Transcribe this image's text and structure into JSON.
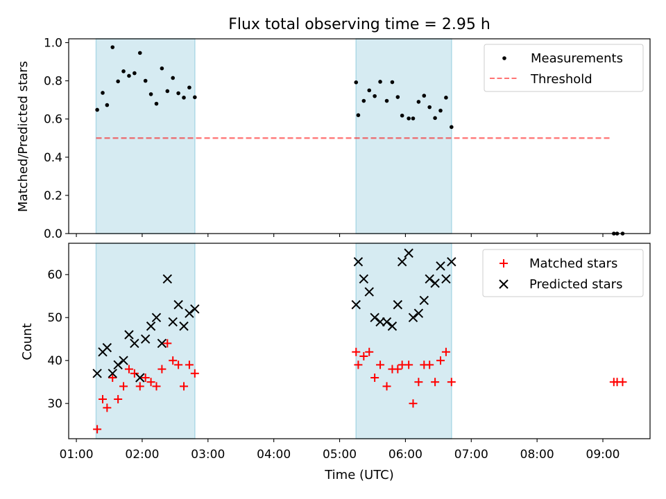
{
  "title": "Flux total observing time = 2.95 h",
  "colors": {
    "shade": "#add8e6",
    "measurement": "#000000",
    "threshold": "#ff0000",
    "matched": "#ff0000",
    "predicted": "#000000"
  },
  "chart_data": [
    {
      "type": "scatter",
      "ylabel": "Matched/Predicted stars",
      "ylim": [
        0,
        1.02
      ],
      "yticks": [
        0.0,
        0.2,
        0.4,
        0.6,
        0.8,
        1.0
      ],
      "ytick_labels": [
        "0.0",
        "0.2",
        "0.4",
        "0.6",
        "0.8",
        "1.0"
      ],
      "legend_position": "top-right",
      "legend": [
        "Measurements",
        "Threshold"
      ],
      "threshold": 0.5,
      "threshold_x_range": [
        "01:18",
        "09:08"
      ],
      "shaded_intervals": [
        [
          "01:18",
          "02:48"
        ],
        [
          "05:15",
          "06:42"
        ]
      ],
      "series": [
        {
          "name": "Measurements",
          "marker": "dot",
          "x": [
            "01:19",
            "01:24",
            "01:28",
            "01:33",
            "01:38",
            "01:43",
            "01:48",
            "01:53",
            "01:58",
            "02:03",
            "02:08",
            "02:13",
            "02:18",
            "02:23",
            "02:28",
            "02:33",
            "02:38",
            "02:43",
            "02:48",
            "05:15",
            "05:17",
            "05:22",
            "05:27",
            "05:32",
            "05:37",
            "05:43",
            "05:48",
            "05:53",
            "05:57",
            "06:03",
            "06:07",
            "06:12",
            "06:17",
            "06:22",
            "06:27",
            "06:32",
            "06:37",
            "06:42",
            "09:10",
            "09:13",
            "09:18"
          ],
          "y": [
            0.648,
            0.737,
            0.673,
            0.976,
            0.797,
            0.85,
            0.826,
            0.84,
            0.946,
            0.8,
            0.73,
            0.68,
            0.865,
            0.746,
            0.815,
            0.735,
            0.712,
            0.765,
            0.714,
            0.792,
            0.62,
            0.695,
            0.75,
            0.72,
            0.795,
            0.695,
            0.793,
            0.715,
            0.618,
            0.603,
            0.603,
            0.69,
            0.722,
            0.662,
            0.605,
            0.644,
            0.712,
            0.558,
            0.0,
            0.0,
            0.0
          ]
        }
      ]
    },
    {
      "type": "scatter",
      "ylabel": "Count",
      "xlabel": "Time (UTC)",
      "ylim": [
        21.8,
        67.3
      ],
      "yticks": [
        30,
        40,
        50,
        60
      ],
      "ytick_labels": [
        "30",
        "40",
        "50",
        "60"
      ],
      "xlim": [
        "00:53",
        "09:43"
      ],
      "xticks": [
        "01:00",
        "02:00",
        "03:00",
        "04:00",
        "05:00",
        "06:00",
        "07:00",
        "08:00",
        "09:00"
      ],
      "legend_position": "top-right",
      "legend": [
        "Matched stars",
        "Predicted stars"
      ],
      "shaded_intervals": [
        [
          "01:18",
          "02:48"
        ],
        [
          "05:15",
          "06:42"
        ]
      ],
      "series": [
        {
          "name": "Matched stars",
          "marker": "plus",
          "x": [
            "01:19",
            "01:24",
            "01:28",
            "01:33",
            "01:38",
            "01:43",
            "01:48",
            "01:53",
            "01:58",
            "02:03",
            "02:08",
            "02:13",
            "02:18",
            "02:23",
            "02:28",
            "02:33",
            "02:38",
            "02:43",
            "02:48",
            "05:15",
            "05:17",
            "05:22",
            "05:27",
            "05:32",
            "05:37",
            "05:43",
            "05:48",
            "05:53",
            "05:57",
            "06:03",
            "06:07",
            "06:12",
            "06:17",
            "06:22",
            "06:27",
            "06:32",
            "06:37",
            "06:42",
            "09:10",
            "09:13",
            "09:18"
          ],
          "y": [
            24,
            31,
            29,
            36,
            31,
            34,
            38,
            37,
            34,
            36,
            35,
            34,
            38,
            44,
            40,
            39,
            34,
            39,
            37,
            42,
            39,
            41,
            42,
            36,
            39,
            34,
            38,
            38,
            39,
            39,
            30,
            35,
            39,
            39,
            35,
            40,
            42,
            35,
            35,
            35,
            35
          ]
        },
        {
          "name": "Predicted stars",
          "marker": "x",
          "x": [
            "01:19",
            "01:24",
            "01:28",
            "01:33",
            "01:38",
            "01:43",
            "01:48",
            "01:53",
            "01:58",
            "02:03",
            "02:08",
            "02:13",
            "02:18",
            "02:23",
            "02:28",
            "02:33",
            "02:38",
            "02:43",
            "02:48",
            "05:15",
            "05:17",
            "05:22",
            "05:27",
            "05:32",
            "05:37",
            "05:43",
            "05:48",
            "05:53",
            "05:57",
            "06:03",
            "06:07",
            "06:12",
            "06:17",
            "06:22",
            "06:27",
            "06:32",
            "06:37",
            "06:42"
          ],
          "y": [
            37,
            42,
            43,
            37,
            39,
            40,
            46,
            44,
            36,
            45,
            48,
            50,
            44,
            59,
            49,
            53,
            48,
            51,
            52,
            53,
            63,
            59,
            56,
            50,
            49,
            49,
            48,
            53,
            63,
            65,
            50,
            51,
            54,
            59,
            58,
            62,
            59,
            63
          ]
        }
      ]
    }
  ]
}
